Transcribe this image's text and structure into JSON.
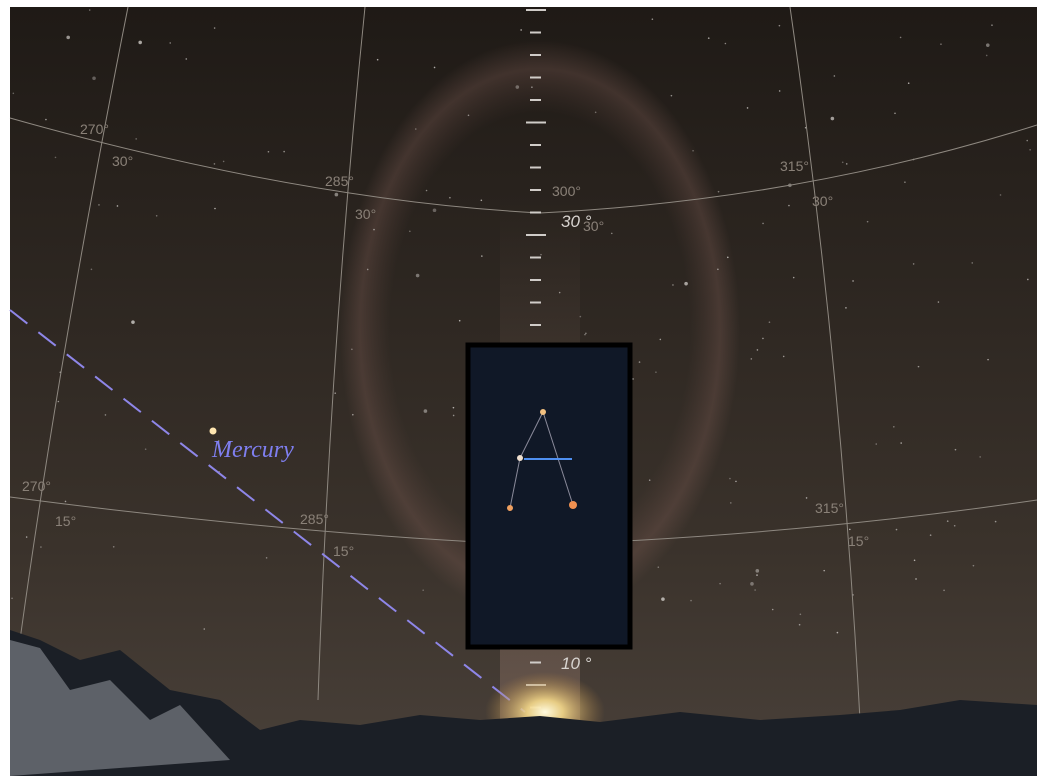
{
  "sky": {
    "object_label": "Mercury",
    "altitude_markers": [
      "30 °",
      "10 °"
    ],
    "grid_labels": [
      {
        "azimuth": "270°",
        "altitude": "30°"
      },
      {
        "azimuth": "285°",
        "altitude": "30°"
      },
      {
        "azimuth": "300°",
        "altitude": "30°"
      },
      {
        "azimuth": "315°",
        "altitude": "30°"
      },
      {
        "azimuth": "270°",
        "altitude": "15°"
      },
      {
        "azimuth": "285°",
        "altitude": "15°"
      },
      {
        "azimuth": "315°",
        "altitude": "15°"
      }
    ]
  }
}
